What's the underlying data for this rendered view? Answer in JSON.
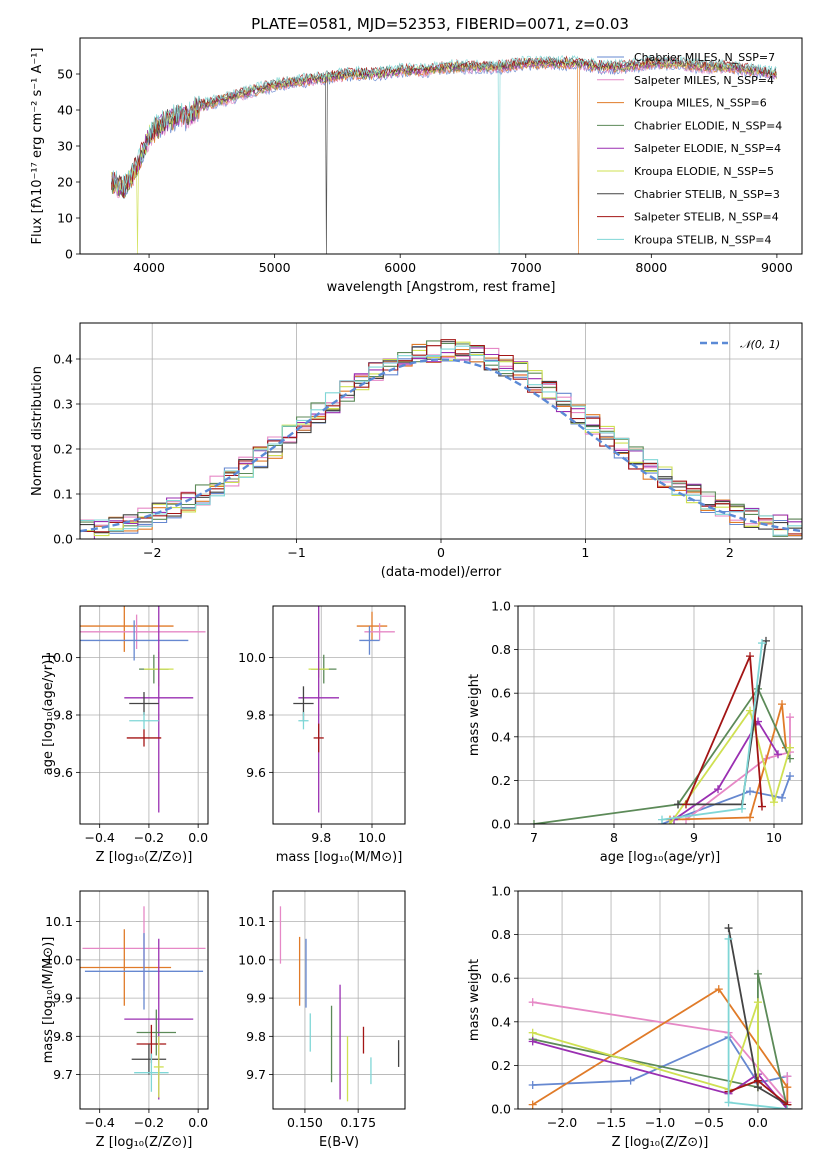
{
  "chart_data": [
    {
      "type": "line",
      "title": "PLATE=0581, MJD=52353, FIBERID=0071, z=0.03",
      "xlabel": "wavelength [Angstrom, rest frame]",
      "ylabel": "Flux [fλ10⁻¹⁷ erg cm⁻² s⁻¹ A⁻¹]",
      "xlim": [
        3450,
        9200
      ],
      "ylim": [
        0,
        60
      ],
      "xticks": [
        "4000",
        "5000",
        "6000",
        "7000",
        "8000",
        "9000"
      ],
      "yticks": [
        "0",
        "10",
        "20",
        "30",
        "40",
        "50"
      ],
      "continuum_x": [
        3700,
        3800,
        3900,
        4000,
        4100,
        4200,
        4300,
        4400,
        4500,
        4600,
        4800,
        5000,
        5200,
        5400,
        5600,
        5800,
        6000,
        6200,
        6400,
        6600,
        6800,
        7000,
        7200,
        7400,
        7600,
        7800,
        8000,
        8200,
        8400,
        8600,
        8800,
        9000
      ],
      "continuum_y": [
        20,
        18,
        24,
        33,
        36,
        38,
        38,
        41,
        42,
        43,
        45,
        47,
        48,
        49,
        50,
        50,
        51,
        51,
        52,
        52,
        52,
        53,
        53,
        53,
        52,
        52,
        53,
        53,
        52,
        52,
        51,
        50
      ],
      "series": [
        {
          "name": "Chabrier MILES, N_SSP=7",
          "n_ssp": 7,
          "color": "#6688d0",
          "notch_x": null
        },
        {
          "name": "Salpeter MILES, N_SSP=4",
          "n_ssp": 4,
          "color": "#e688c6",
          "notch_x": null
        },
        {
          "name": "Kroupa MILES, N_SSP=6",
          "n_ssp": 6,
          "color": "#e07b29",
          "notch_x": 7420
        },
        {
          "name": "Chabrier ELODIE, N_SSP=4",
          "n_ssp": 4,
          "color": "#5c8a58",
          "notch_x": null
        },
        {
          "name": "Salpeter ELODIE, N_SSP=4",
          "n_ssp": 4,
          "color": "#9a2fb2",
          "notch_x": null
        },
        {
          "name": "Kroupa ELODIE, N_SSP=5",
          "n_ssp": 5,
          "color": "#cfe052",
          "notch_x": 3910
        },
        {
          "name": "Chabrier STELIB, N_SSP=3",
          "n_ssp": 3,
          "color": "#444444",
          "notch_x": 5410
        },
        {
          "name": "Salpeter STELIB, N_SSP=4",
          "n_ssp": 4,
          "color": "#a31515",
          "notch_x": null
        },
        {
          "name": "Kroupa STELIB, N_SSP=4",
          "n_ssp": 4,
          "color": "#7fd6d6",
          "notch_x": 6790
        }
      ]
    },
    {
      "type": "line",
      "xlabel": "(data-model)/error",
      "ylabel": "Normed distribution",
      "xlim": [
        -2.5,
        2.5
      ],
      "ylim": [
        0,
        0.48
      ],
      "xticks": [
        "−2",
        "−1",
        "0",
        "1",
        "2"
      ],
      "yticks": [
        "0.0",
        "0.1",
        "0.2",
        "0.3",
        "0.4"
      ],
      "reference": {
        "name": "𝒩(0, 1)",
        "mean": 0,
        "sigma": 1,
        "color": "#5b8ad6"
      }
    },
    {
      "type": "scatter",
      "xlabel": "Z [log₁₀(Z/Z⊙)]",
      "ylabel": "age  [log₁₀(age/yr)]",
      "xlim": [
        -0.48,
        0.04
      ],
      "ylim": [
        9.42,
        10.18
      ],
      "xticks": [
        "−0.4",
        "−0.2",
        "0.0"
      ],
      "yticks": [
        "9.6",
        "9.8",
        "10.0"
      ],
      "points": [
        {
          "x": -0.3,
          "y": 10.11,
          "xerr": 0.2,
          "yerr": 0.09,
          "color": "#e07b29"
        },
        {
          "x": -0.25,
          "y": 10.09,
          "xerr": 0.28,
          "yerr": 0.06,
          "color": "#e688c6"
        },
        {
          "x": -0.26,
          "y": 10.06,
          "xerr": 0.22,
          "yerr": 0.07,
          "color": "#6688d0"
        },
        {
          "x": -0.18,
          "y": 9.96,
          "xerr": 0.06,
          "yerr": 0.05,
          "color": "#5c8a58"
        },
        {
          "x": -0.16,
          "y": 9.96,
          "xerr": 0.06,
          "yerr": 0.06,
          "color": "#cfe052"
        },
        {
          "x": -0.16,
          "y": 9.86,
          "xerr": 0.14,
          "yerr": 0.4,
          "color": "#9a2fb2"
        },
        {
          "x": -0.22,
          "y": 9.84,
          "xerr": 0.06,
          "yerr": 0.04,
          "color": "#444444"
        },
        {
          "x": -0.22,
          "y": 9.78,
          "xerr": 0.06,
          "yerr": 0.03,
          "color": "#7fd6d6"
        },
        {
          "x": -0.22,
          "y": 9.72,
          "xerr": 0.07,
          "yerr": 0.03,
          "color": "#a31515"
        }
      ]
    },
    {
      "type": "scatter",
      "xlabel": "mass [log₁₀(M/M⊙)]",
      "xlim": [
        9.61,
        10.13
      ],
      "ylim": [
        9.42,
        10.18
      ],
      "xticks": [
        "9.8",
        "10.0"
      ],
      "yticks": [
        "9.6",
        "9.8",
        "10.0"
      ],
      "points": [
        {
          "x": 10.0,
          "y": 10.11,
          "xerr": 0.06,
          "yerr": 0.05,
          "color": "#e07b29"
        },
        {
          "x": 10.03,
          "y": 10.09,
          "xerr": 0.06,
          "yerr": 0.03,
          "color": "#e688c6"
        },
        {
          "x": 9.99,
          "y": 10.06,
          "xerr": 0.04,
          "yerr": 0.05,
          "color": "#6688d0"
        },
        {
          "x": 9.81,
          "y": 9.96,
          "xerr": 0.05,
          "yerr": 0.05,
          "color": "#5c8a58"
        },
        {
          "x": 9.79,
          "y": 9.96,
          "xerr": 0.04,
          "yerr": 0.03,
          "color": "#cfe052"
        },
        {
          "x": 9.79,
          "y": 9.86,
          "xerr": 0.08,
          "yerr": 0.4,
          "color": "#9a2fb2"
        },
        {
          "x": 9.73,
          "y": 9.84,
          "xerr": 0.04,
          "yerr": 0.06,
          "color": "#444444"
        },
        {
          "x": 9.73,
          "y": 9.78,
          "xerr": 0.02,
          "yerr": 0.03,
          "color": "#7fd6d6"
        },
        {
          "x": 9.79,
          "y": 9.72,
          "xerr": 0.02,
          "yerr": 0.05,
          "color": "#a31515"
        }
      ]
    },
    {
      "type": "line",
      "xlabel": "age  [log₁₀(age/yr)]",
      "ylabel": "mass weight",
      "xlim": [
        6.8,
        10.35
      ],
      "ylim": [
        0,
        1.0
      ],
      "xticks": [
        "7",
        "8",
        "9",
        "10"
      ],
      "yticks": [
        "0.0",
        "0.2",
        "0.4",
        "0.6",
        "0.8",
        "1.0"
      ],
      "series": [
        {
          "color": "#6688d0",
          "x": [
            8.6,
            9.7,
            10.1,
            10.2
          ],
          "y": [
            0.0,
            0.15,
            0.12,
            0.22
          ]
        },
        {
          "color": "#e688c6",
          "x": [
            8.9,
            9.9,
            10.2,
            10.2
          ],
          "y": [
            0.02,
            0.3,
            0.33,
            0.49
          ]
        },
        {
          "color": "#e07b29",
          "x": [
            8.7,
            9.7,
            10.1,
            10.15
          ],
          "y": [
            0.02,
            0.03,
            0.55,
            0.35
          ]
        },
        {
          "color": "#5c8a58",
          "x": [
            7.0,
            8.8,
            9.8,
            10.2
          ],
          "y": [
            0.0,
            0.09,
            0.62,
            0.3
          ]
        },
        {
          "color": "#9a2fb2",
          "x": [
            8.75,
            9.3,
            9.8,
            10.05
          ],
          "y": [
            0.02,
            0.16,
            0.47,
            0.32
          ]
        },
        {
          "color": "#cfe052",
          "x": [
            8.7,
            9.7,
            10.0,
            10.2
          ],
          "y": [
            0.0,
            0.52,
            0.1,
            0.35
          ]
        },
        {
          "color": "#444444",
          "x": [
            8.8,
            9.6,
            9.9
          ],
          "y": [
            0.09,
            0.09,
            0.84
          ]
        },
        {
          "color": "#a31515",
          "x": [
            8.9,
            9.7,
            9.85
          ],
          "y": [
            0.09,
            0.77,
            0.08
          ]
        },
        {
          "color": "#7fd6d6",
          "x": [
            8.6,
            9.6,
            9.85
          ],
          "y": [
            0.02,
            0.07,
            0.83
          ]
        }
      ]
    },
    {
      "type": "scatter",
      "xlabel": "Z [log₁₀(Z/Z⊙)]",
      "ylabel": "mass [log₁₀(M/M⊙)]",
      "xlim": [
        -0.48,
        0.04
      ],
      "ylim": [
        9.61,
        10.18
      ],
      "xticks": [
        "−0.4",
        "−0.2",
        "0.0"
      ],
      "yticks": [
        "9.7",
        "9.8",
        "9.9",
        "10.0",
        "10.1"
      ],
      "points": [
        {
          "x": -0.22,
          "y": 10.03,
          "xerr": 0.25,
          "yerr": 0.11,
          "color": "#e688c6"
        },
        {
          "x": -0.3,
          "y": 9.98,
          "xerr": 0.19,
          "yerr": 0.1,
          "color": "#e07b29"
        },
        {
          "x": -0.22,
          "y": 9.97,
          "xerr": 0.24,
          "yerr": 0.1,
          "color": "#6688d0"
        },
        {
          "x": -0.16,
          "y": 9.845,
          "xerr": 0.14,
          "yerr": 0.21,
          "color": "#9a2fb2"
        },
        {
          "x": -0.17,
          "y": 9.81,
          "xerr": 0.08,
          "yerr": 0.06,
          "color": "#5c8a58"
        },
        {
          "x": -0.19,
          "y": 9.78,
          "xerr": 0.06,
          "yerr": 0.05,
          "color": "#a31515"
        },
        {
          "x": -0.2,
          "y": 9.74,
          "xerr": 0.07,
          "yerr": 0.04,
          "color": "#444444"
        },
        {
          "x": -0.19,
          "y": 9.705,
          "xerr": 0.07,
          "yerr": 0.05,
          "color": "#7fd6d6"
        },
        {
          "x": -0.16,
          "y": 9.72,
          "xerr": 0.02,
          "yerr": 0.08,
          "color": "#cfe052"
        }
      ]
    },
    {
      "type": "scatter",
      "xlabel": "E(B-V)",
      "xlim": [
        0.135,
        0.197
      ],
      "ylim": [
        9.61,
        10.18
      ],
      "xticks": [
        "0.150",
        "0.175"
      ],
      "yticks": [
        "9.7",
        "9.8",
        "9.9",
        "10.0",
        "10.1"
      ],
      "points": [
        {
          "x": 0.1385,
          "y": 10.065,
          "yerr": 0.075,
          "color": "#e688c6"
        },
        {
          "x": 0.1475,
          "y": 9.97,
          "yerr": 0.09,
          "color": "#e07b29"
        },
        {
          "x": 0.1505,
          "y": 9.965,
          "yerr": 0.09,
          "color": "#6688d0"
        },
        {
          "x": 0.1525,
          "y": 9.81,
          "yerr": 0.05,
          "color": "#7fd6d6"
        },
        {
          "x": 0.1625,
          "y": 9.78,
          "yerr": 0.1,
          "color": "#5c8a58"
        },
        {
          "x": 0.1665,
          "y": 9.785,
          "yerr": 0.15,
          "color": "#9a2fb2"
        },
        {
          "x": 0.17,
          "y": 9.715,
          "yerr": 0.085,
          "color": "#cfe052"
        },
        {
          "x": 0.1775,
          "y": 9.79,
          "yerr": 0.035,
          "color": "#a31515"
        },
        {
          "x": 0.181,
          "y": 9.71,
          "yerr": 0.035,
          "color": "#7fd6d6"
        },
        {
          "x": 0.194,
          "y": 9.755,
          "yerr": 0.035,
          "color": "#444444"
        }
      ]
    },
    {
      "type": "line",
      "xlabel": "Z [log₁₀(Z/Z⊙)]",
      "ylabel": "mass weight",
      "xlim": [
        -2.45,
        0.45
      ],
      "ylim": [
        0,
        1.0
      ],
      "xticks": [
        "−2.0",
        "−1.5",
        "−1.0",
        "−0.5",
        "0.0"
      ],
      "yticks": [
        "0.0",
        "0.2",
        "0.4",
        "0.6",
        "0.8",
        "1.0"
      ],
      "series": [
        {
          "color": "#6688d0",
          "x": [
            -2.3,
            -1.3,
            -0.3,
            0.0,
            0.3
          ],
          "y": [
            0.11,
            0.13,
            0.33,
            0.12,
            0.15
          ]
        },
        {
          "color": "#e688c6",
          "x": [
            -2.3,
            -0.3,
            0.3,
            0.3
          ],
          "y": [
            0.49,
            0.35,
            0.03,
            0.15
          ]
        },
        {
          "color": "#e07b29",
          "x": [
            -2.3,
            -0.4,
            0.3,
            0.3
          ],
          "y": [
            0.02,
            0.55,
            0.1,
            0.02
          ]
        },
        {
          "color": "#5c8a58",
          "x": [
            -2.3,
            0.0,
            0.0,
            0.3
          ],
          "y": [
            0.32,
            0.1,
            0.62,
            0.0
          ]
        },
        {
          "color": "#9a2fb2",
          "x": [
            -2.3,
            -0.3,
            0.0,
            0.3
          ],
          "y": [
            0.31,
            0.07,
            0.16,
            0.0
          ]
        },
        {
          "color": "#cfe052",
          "x": [
            -2.3,
            -0.3,
            0.0,
            0.0
          ],
          "y": [
            0.35,
            0.09,
            0.49,
            0.1
          ]
        },
        {
          "color": "#444444",
          "x": [
            -0.3,
            0.0,
            0.3
          ],
          "y": [
            0.83,
            0.1,
            0.02
          ]
        },
        {
          "color": "#a31515",
          "x": [
            -0.3,
            0.0,
            0.3
          ],
          "y": [
            0.08,
            0.13,
            0.02
          ]
        },
        {
          "color": "#7fd6d6",
          "x": [
            -0.3,
            -0.3,
            0.3
          ],
          "y": [
            0.78,
            0.03,
            0.0
          ]
        }
      ]
    }
  ]
}
